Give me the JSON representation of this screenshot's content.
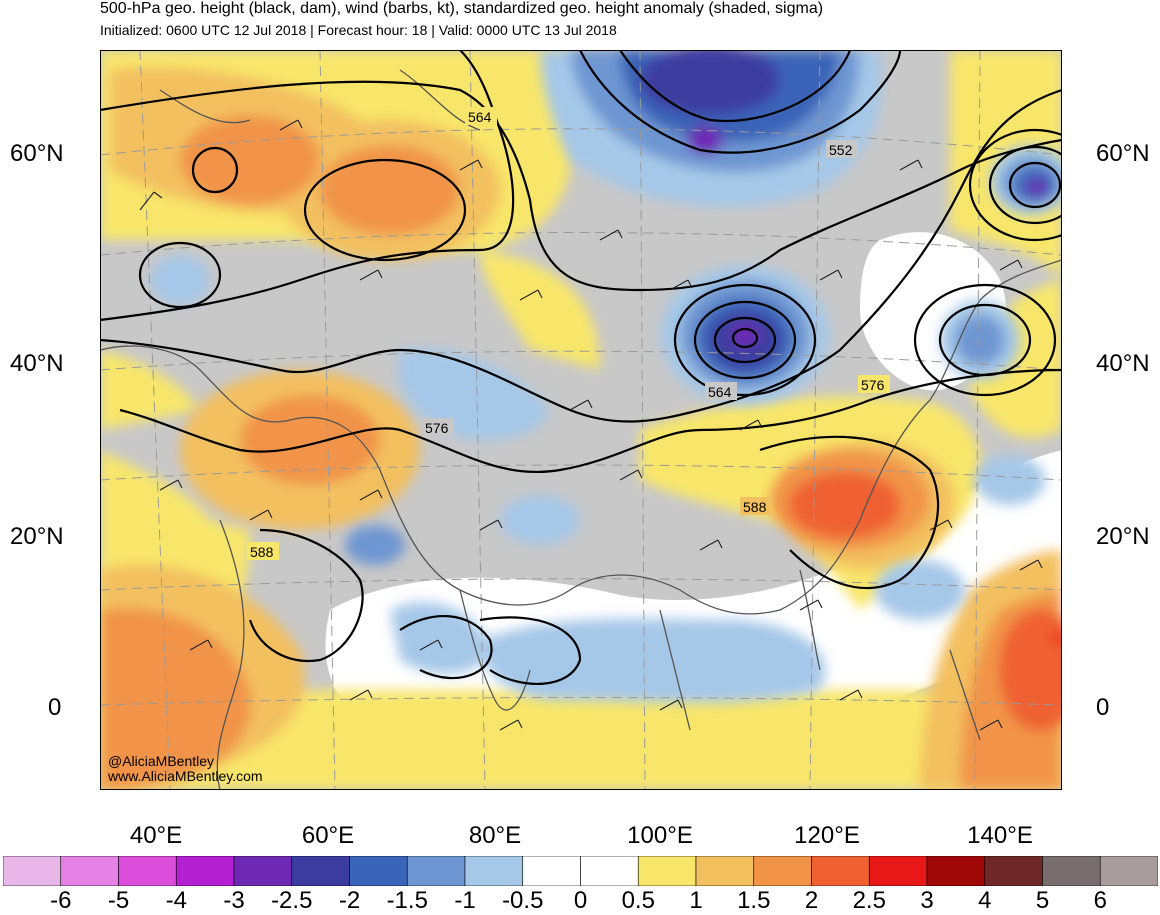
{
  "header": {
    "title": "500-hPa geo. height (black, dam), wind (barbs, kt), standardized geo. height anomaly (shaded, sigma)",
    "subtitle": "Initialized: 0600 UTC 12 Jul 2018 | Forecast hour: 18 | Valid: 0000 UTC 13 Jul 2018"
  },
  "axes": {
    "lat_labels": [
      "60°N",
      "40°N",
      "20°N",
      "0"
    ],
    "lon_labels": [
      "40°E",
      "60°E",
      "80°E",
      "100°E",
      "120°E",
      "140°E"
    ]
  },
  "contour_labels": {
    "c564_north": "564",
    "c552": "552",
    "c564_low": "564",
    "c576_east": "576",
    "c576_west": "576",
    "c588_east": "588",
    "c588_west": "588"
  },
  "credits": {
    "handle": "@AliciaMBentley",
    "website": "www.AliciaMBentley.com"
  },
  "colorbar": {
    "labels": [
      "-6",
      "-5",
      "-4",
      "-3",
      "-2.5",
      "-2",
      "-1.5",
      "-1",
      "-0.5",
      "0",
      "0.5",
      "1",
      "1.5",
      "2",
      "2.5",
      "3",
      "4",
      "5",
      "6"
    ],
    "colors": [
      "#e8b6e8",
      "#e681e6",
      "#dc4ddc",
      "#b41fd2",
      "#6e28b4",
      "#3c3ca0",
      "#3a64b8",
      "#6e96d2",
      "#a6c8e8",
      "#ffffff",
      "#ffffff",
      "#f8e66a",
      "#f3c060",
      "#f19448",
      "#ef6130",
      "#e81818",
      "#a00808",
      "#6e2828",
      "#786e6e",
      "#a89c9c"
    ]
  },
  "colors": {
    "neutral_gray": "#c8c8c8",
    "ocean_white": "#ffffff",
    "contour": "#000000",
    "coastline": "#555555"
  }
}
